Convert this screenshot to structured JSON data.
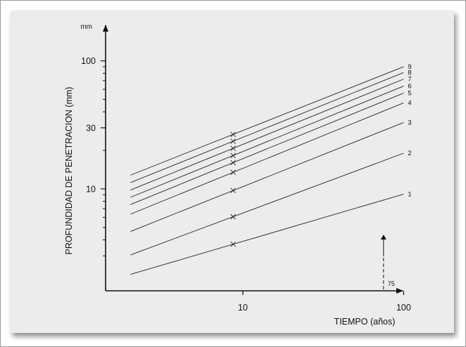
{
  "chart_data": {
    "type": "line",
    "title": "",
    "xlabel": "TIEMPO (años)",
    "ylabel": "PROFUNDIDAD DE PENETRACION (mm)",
    "y_unit_label": "mm",
    "x_scale": "log",
    "y_scale": "log",
    "xlim": [
      1.4,
      130
    ],
    "ylim": [
      1.6,
      140
    ],
    "x_ticks": [
      {
        "value": 10,
        "label": "10"
      },
      {
        "value": 100,
        "label": "100"
      }
    ],
    "y_ticks": [
      {
        "value": 10,
        "label": "10"
      },
      {
        "value": 30,
        "label": "30"
      },
      {
        "value": 100,
        "label": "100"
      }
    ],
    "y_minor_ticks": [
      3,
      4,
      5,
      6,
      7,
      8,
      9,
      20,
      40,
      50,
      60,
      70,
      80,
      90
    ],
    "grid": false,
    "legend": "none",
    "x_range": [
      2,
      100
    ],
    "marker_x": 8.7,
    "series": [
      {
        "name": "1",
        "values": [
          2.15,
          9.1
        ]
      },
      {
        "name": "2",
        "values": [
          3.05,
          19.0
        ]
      },
      {
        "name": "3",
        "values": [
          4.65,
          33.0
        ]
      },
      {
        "name": "4",
        "values": [
          6.35,
          47.0
        ]
      },
      {
        "name": "5",
        "values": [
          7.55,
          56.0
        ]
      },
      {
        "name": "6",
        "values": [
          8.6,
          63.5
        ]
      },
      {
        "name": "7",
        "values": [
          9.8,
          72.0
        ]
      },
      {
        "name": "8",
        "values": [
          11.2,
          81.0
        ]
      },
      {
        "name": "9",
        "values": [
          12.8,
          90.0
        ]
      }
    ],
    "annotations": [
      {
        "type": "arrow",
        "x": 75,
        "label": "75"
      }
    ]
  }
}
